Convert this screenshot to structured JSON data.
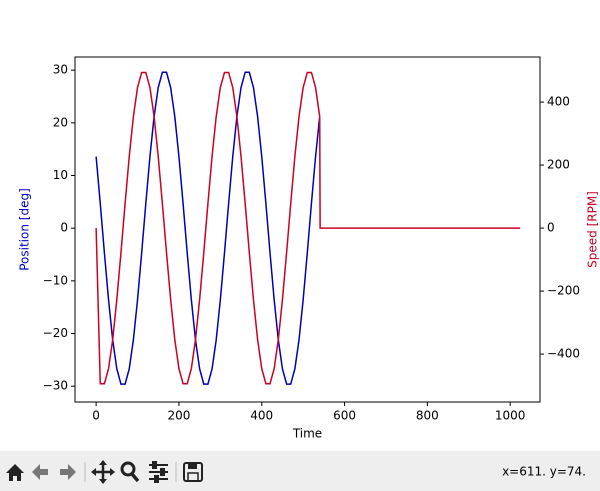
{
  "chart_data": {
    "type": "line",
    "xlabel": "Time",
    "ylabel": "Position [deg]",
    "y2label": "Speed [RPM]",
    "ylabel_color": "#0000cc",
    "y2label_color": "#cc0022",
    "x": [
      0,
      10,
      20,
      30,
      40,
      50,
      60,
      70,
      80,
      90,
      100,
      110,
      120,
      130,
      140,
      150,
      160,
      170,
      180,
      190,
      200,
      210,
      220,
      230,
      240,
      250,
      260,
      270,
      280,
      290,
      300,
      310,
      320,
      330,
      340,
      350,
      360,
      370,
      380,
      390,
      400,
      410,
      420,
      430,
      440,
      450,
      460,
      470,
      480,
      490,
      500,
      510,
      520,
      530,
      540,
      541,
      1024
    ],
    "series": [
      {
        "color": "#0000bb",
        "values": [
          13.6,
          4.7,
          -4.7,
          -13.6,
          -21.2,
          -26.7,
          -29.6,
          -29.6,
          -26.7,
          -21.2,
          -13.6,
          -4.7,
          4.7,
          13.6,
          21.2,
          26.7,
          29.6,
          29.6,
          26.7,
          21.2,
          13.6,
          4.7,
          -4.7,
          -13.6,
          -21.2,
          -26.7,
          -29.6,
          -29.6,
          -26.7,
          -21.2,
          -13.6,
          -4.7,
          4.7,
          13.6,
          21.2,
          26.7,
          29.6,
          29.6,
          26.7,
          21.2,
          13.6,
          4.7,
          -4.7,
          -13.6,
          -21.2,
          -26.7,
          -29.6,
          -29.6,
          -26.7,
          -21.2,
          -13.6,
          -4.7,
          4.7,
          13.6,
          21.2,
          null,
          null
        ]
      },
      {
        "color": "#cc0022",
        "axis": "y2",
        "values": [
          0,
          -494,
          -494,
          -446,
          -354,
          -227,
          -78,
          78,
          227,
          354,
          446,
          494,
          494,
          446,
          354,
          227,
          78,
          -78,
          -227,
          -354,
          -446,
          -494,
          -494,
          -446,
          -354,
          -227,
          -78,
          78,
          227,
          354,
          446,
          494,
          494,
          446,
          354,
          227,
          78,
          -78,
          -227,
          -354,
          -446,
          -494,
          -494,
          -446,
          -354,
          -227,
          -78,
          78,
          227,
          354,
          446,
          494,
          494,
          446,
          354,
          0,
          0
        ]
      }
    ],
    "xlim": [
      -51,
      1072
    ],
    "xticks": [
      0,
      200,
      400,
      600,
      800,
      1000
    ],
    "ylim": [
      -33,
      32.5
    ],
    "yticks": [
      {
        "value": -30,
        "label": "−30"
      },
      {
        "value": -20,
        "label": "−20"
      },
      {
        "value": -10,
        "label": "−10"
      },
      0,
      10,
      20,
      30
    ],
    "y2lim": [
      -552,
      543
    ],
    "y2ticks": [
      {
        "value": -400,
        "label": "−400"
      },
      {
        "value": -200,
        "label": "−200"
      },
      0,
      200,
      400
    ]
  },
  "toolbar": {
    "status": "x=611. y=74."
  }
}
